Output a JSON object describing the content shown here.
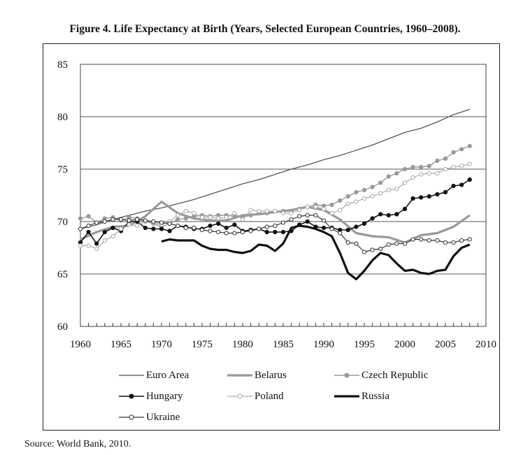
{
  "figure_title": "Figure 4.  Life Expectancy at Birth (Years, Selected European Countries, 1960–2008).",
  "source": "Source: World Bank, 2010.",
  "chart_data": {
    "type": "line",
    "title": "Life Expectancy at Birth (Years, Selected European Countries, 1960–2008)",
    "xlabel": "",
    "ylabel": "",
    "xlim": [
      1960,
      2010
    ],
    "ylim": [
      60,
      85
    ],
    "xticks": [
      1960,
      1965,
      1970,
      1975,
      1980,
      1985,
      1990,
      1995,
      2000,
      2005,
      2010
    ],
    "yticks": [
      60,
      65,
      70,
      75,
      80,
      85
    ],
    "grid": "horizontal",
    "legend_position": "bottom",
    "series": [
      {
        "name": "Euro Area",
        "style": "thin",
        "color": "#555555",
        "x": [
          1960,
          1962,
          1964,
          1966,
          1968,
          1970,
          1972,
          1974,
          1976,
          1978,
          1980,
          1982,
          1984,
          1986,
          1988,
          1990,
          1992,
          1994,
          1996,
          1998,
          2000,
          2002,
          2004,
          2006,
          2008
        ],
        "values": [
          69.3,
          69.7,
          70.2,
          70.6,
          71.0,
          71.3,
          71.7,
          72.1,
          72.6,
          73.1,
          73.6,
          74.0,
          74.5,
          75.0,
          75.4,
          75.9,
          76.3,
          76.8,
          77.3,
          77.9,
          78.5,
          78.9,
          79.5,
          80.2,
          80.7
        ]
      },
      {
        "name": "Belarus",
        "style": "thick",
        "color": "#999999",
        "x": [
          1960,
          1962,
          1964,
          1966,
          1968,
          1970,
          1972,
          1974,
          1976,
          1978,
          1980,
          1982,
          1984,
          1986,
          1988,
          1990,
          1992,
          1994,
          1996,
          1998,
          2000,
          2002,
          2004,
          2006,
          2008
        ],
        "values": [
          68.3,
          69.0,
          69.5,
          69.6,
          70.5,
          71.9,
          70.8,
          70.3,
          70.1,
          70.1,
          70.6,
          70.7,
          70.9,
          71.1,
          71.4,
          71.1,
          70.2,
          68.9,
          68.6,
          68.5,
          68.0,
          68.7,
          68.9,
          69.5,
          70.6
        ]
      },
      {
        "name": "Czech Republic",
        "style": "dot-gray",
        "color": "#999999",
        "x": [
          1960,
          1961,
          1962,
          1963,
          1964,
          1965,
          1966,
          1967,
          1968,
          1969,
          1970,
          1971,
          1972,
          1973,
          1974,
          1975,
          1976,
          1977,
          1978,
          1979,
          1980,
          1981,
          1982,
          1983,
          1984,
          1985,
          1986,
          1987,
          1988,
          1989,
          1990,
          1991,
          1992,
          1993,
          1994,
          1995,
          1996,
          1997,
          1998,
          1999,
          2000,
          2001,
          2002,
          2003,
          2004,
          2005,
          2006,
          2007,
          2008
        ],
        "values": [
          70.3,
          70.5,
          69.9,
          70.3,
          70.4,
          70.1,
          70.4,
          70.3,
          70.0,
          69.8,
          69.5,
          69.8,
          70.2,
          70.3,
          70.5,
          70.6,
          70.5,
          70.6,
          70.6,
          70.5,
          70.4,
          70.6,
          70.8,
          70.8,
          71.0,
          71.0,
          71.0,
          71.2,
          71.4,
          71.6,
          71.5,
          71.6,
          72.0,
          72.4,
          72.8,
          73.0,
          73.3,
          73.7,
          74.3,
          74.6,
          75.0,
          75.2,
          75.2,
          75.3,
          75.8,
          76.0,
          76.6,
          76.9,
          77.2
        ]
      },
      {
        "name": "Hungary",
        "style": "dot-black",
        "color": "#111111",
        "x": [
          1960,
          1961,
          1962,
          1963,
          1964,
          1965,
          1966,
          1967,
          1968,
          1969,
          1970,
          1971,
          1972,
          1973,
          1974,
          1975,
          1976,
          1977,
          1978,
          1979,
          1980,
          1981,
          1982,
          1983,
          1984,
          1985,
          1986,
          1987,
          1988,
          1989,
          1990,
          1991,
          1992,
          1993,
          1994,
          1995,
          1996,
          1997,
          1998,
          1999,
          2000,
          2001,
          2002,
          2003,
          2004,
          2005,
          2006,
          2007,
          2008
        ],
        "values": [
          68.0,
          69.0,
          67.9,
          69.0,
          69.4,
          69.1,
          70.0,
          70.0,
          69.4,
          69.3,
          69.3,
          69.1,
          69.6,
          69.5,
          69.3,
          69.3,
          69.6,
          69.8,
          69.4,
          69.7,
          69.1,
          69.2,
          69.3,
          69.0,
          69.0,
          69.0,
          69.1,
          69.7,
          70.0,
          69.5,
          69.4,
          69.4,
          69.2,
          69.2,
          69.5,
          69.8,
          70.3,
          70.7,
          70.6,
          70.7,
          71.2,
          72.2,
          72.3,
          72.4,
          72.6,
          72.8,
          73.4,
          73.5,
          74.0
        ]
      },
      {
        "name": "Poland",
        "style": "open-light",
        "color": "#aaaaaa",
        "x": [
          1960,
          1961,
          1962,
          1963,
          1964,
          1965,
          1966,
          1967,
          1968,
          1969,
          1970,
          1971,
          1972,
          1973,
          1974,
          1975,
          1976,
          1977,
          1978,
          1979,
          1980,
          1981,
          1982,
          1983,
          1984,
          1985,
          1986,
          1987,
          1988,
          1989,
          1990,
          1991,
          1992,
          1993,
          1994,
          1995,
          1996,
          1997,
          1998,
          1999,
          2000,
          2001,
          2002,
          2003,
          2004,
          2005,
          2006,
          2007,
          2008
        ],
        "values": [
          67.7,
          67.7,
          67.4,
          68.2,
          68.6,
          69.3,
          69.7,
          69.6,
          70.0,
          69.9,
          69.7,
          70.0,
          70.6,
          71.0,
          70.8,
          70.4,
          70.4,
          70.3,
          70.4,
          70.8,
          70.2,
          71.1,
          71.0,
          71.0,
          71.0,
          70.8,
          70.8,
          71.1,
          71.4,
          71.4,
          71.2,
          70.8,
          71.1,
          71.7,
          71.9,
          72.2,
          72.4,
          72.7,
          73.0,
          73.1,
          73.7,
          74.2,
          74.5,
          74.6,
          74.6,
          75.0,
          75.2,
          75.3,
          75.5
        ]
      },
      {
        "name": "Russia",
        "style": "thick-black",
        "color": "#111111",
        "x": [
          1970,
          1971,
          1972,
          1973,
          1974,
          1975,
          1976,
          1977,
          1978,
          1979,
          1980,
          1981,
          1982,
          1983,
          1984,
          1985,
          1986,
          1987,
          1988,
          1989,
          1990,
          1991,
          1992,
          1993,
          1994,
          1995,
          1996,
          1997,
          1998,
          1999,
          2000,
          2001,
          2002,
          2003,
          2004,
          2005,
          2006,
          2007,
          2008
        ],
        "values": [
          68.1,
          68.3,
          68.2,
          68.2,
          68.2,
          67.7,
          67.4,
          67.3,
          67.3,
          67.1,
          67.0,
          67.2,
          67.8,
          67.7,
          67.2,
          67.9,
          69.4,
          69.6,
          69.5,
          69.3,
          69.0,
          68.6,
          67.0,
          65.1,
          64.5,
          65.3,
          66.3,
          67.0,
          66.8,
          66.0,
          65.3,
          65.4,
          65.1,
          65.0,
          65.3,
          65.4,
          66.7,
          67.5,
          67.8
        ]
      },
      {
        "name": "Ukraine",
        "style": "open-dark",
        "color": "#333333",
        "x": [
          1960,
          1961,
          1962,
          1963,
          1964,
          1965,
          1966,
          1967,
          1968,
          1969,
          1970,
          1971,
          1972,
          1973,
          1974,
          1975,
          1976,
          1977,
          1978,
          1979,
          1980,
          1981,
          1982,
          1983,
          1984,
          1985,
          1986,
          1987,
          1988,
          1989,
          1990,
          1991,
          1992,
          1993,
          1994,
          1995,
          1996,
          1997,
          1998,
          1999,
          2000,
          2001,
          2002,
          2003,
          2004,
          2005,
          2006,
          2007,
          2008
        ],
        "values": [
          69.3,
          69.6,
          69.9,
          70.0,
          70.2,
          70.2,
          70.1,
          70.2,
          70.1,
          70.0,
          69.9,
          69.8,
          69.6,
          69.4,
          69.4,
          69.2,
          69.1,
          69.0,
          68.9,
          68.9,
          69.0,
          69.1,
          69.3,
          69.5,
          69.6,
          69.9,
          70.2,
          70.5,
          70.6,
          70.6,
          70.1,
          69.3,
          68.9,
          68.0,
          67.9,
          67.1,
          67.3,
          67.4,
          67.8,
          67.9,
          67.9,
          68.3,
          68.3,
          68.2,
          68.2,
          68.0,
          68.0,
          68.2,
          68.3
        ]
      }
    ]
  }
}
